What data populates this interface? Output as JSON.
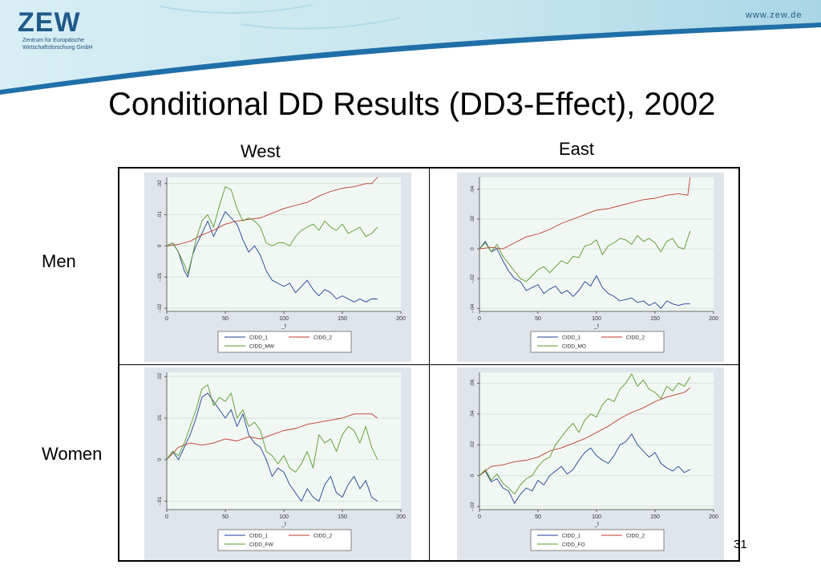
{
  "header": {
    "logo_text": "ZEW",
    "logo_sub_1": "Zentrum für Europäische",
    "logo_sub_2": "Wirtschaftsforschung GmbH",
    "website": "www.zew.de",
    "colors": {
      "banner": "#cfe8f0",
      "banner_dark": "#1f6fa8",
      "logo": "#1f5a8a"
    }
  },
  "slide": {
    "title": "Conditional DD Results (DD3-Effect), 2002",
    "col_labels": [
      "West",
      "East"
    ],
    "row_labels": [
      "Men",
      "Women"
    ],
    "page_number": "31"
  },
  "chart_data": [
    {
      "type": "line",
      "panel": "West - Men",
      "xlabel": "_t",
      "xlim": [
        0,
        200
      ],
      "xticks": [
        0,
        50,
        100,
        150,
        200
      ],
      "ylim": [
        -0.021,
        0.022
      ],
      "yticks": [
        -0.02,
        -0.01,
        0,
        0.01,
        0.02
      ],
      "ytick_labels": [
        "-.02",
        "-.01",
        "0",
        ".01",
        ".02"
      ],
      "legend": [
        "CIDD_1",
        "CIDD_2",
        "CIDD_MW"
      ],
      "legend_position": "bottom",
      "grid": true,
      "series": [
        {
          "name": "CIDD_1",
          "color": "#1f3f99",
          "x": [
            0,
            5,
            10,
            15,
            18,
            22,
            25,
            30,
            35,
            40,
            45,
            50,
            55,
            60,
            65,
            70,
            75,
            80,
            85,
            90,
            95,
            100,
            105,
            110,
            115,
            120,
            125,
            130,
            135,
            140,
            145,
            150,
            155,
            160,
            165,
            170,
            175,
            180
          ],
          "y": [
            0,
            0.001,
            -0.002,
            -0.008,
            -0.01,
            -0.003,
            0.0,
            0.004,
            0.008,
            0.003,
            0.007,
            0.011,
            0.009,
            0.007,
            0.002,
            -0.002,
            0.0,
            -0.003,
            -0.008,
            -0.011,
            -0.012,
            -0.013,
            -0.012,
            -0.015,
            -0.013,
            -0.011,
            -0.014,
            -0.016,
            -0.014,
            -0.015,
            -0.017,
            -0.016,
            -0.017,
            -0.018,
            -0.017,
            -0.018,
            -0.017,
            -0.017
          ]
        },
        {
          "name": "CIDD_2",
          "color": "#c0392b",
          "x": [
            0,
            10,
            20,
            30,
            40,
            50,
            60,
            70,
            80,
            90,
            100,
            110,
            120,
            130,
            140,
            150,
            160,
            170,
            175,
            180
          ],
          "y": [
            0,
            0.0005,
            0.0015,
            0.0035,
            0.005,
            0.007,
            0.008,
            0.0085,
            0.009,
            0.0105,
            0.012,
            0.013,
            0.014,
            0.016,
            0.0175,
            0.0185,
            0.019,
            0.02,
            0.02,
            0.022
          ]
        },
        {
          "name": "CIDD_MW",
          "color": "#5a9a2a",
          "x": [
            0,
            5,
            10,
            15,
            18,
            22,
            25,
            30,
            35,
            40,
            45,
            50,
            55,
            60,
            65,
            70,
            75,
            80,
            85,
            90,
            95,
            100,
            105,
            110,
            115,
            120,
            125,
            130,
            135,
            140,
            145,
            150,
            155,
            160,
            165,
            170,
            175,
            180
          ],
          "y": [
            0,
            0.001,
            -0.002,
            -0.006,
            -0.009,
            -0.003,
            0.002,
            0.008,
            0.01,
            0.006,
            0.013,
            0.019,
            0.018,
            0.012,
            0.008,
            0.009,
            0.008,
            0.006,
            0.001,
            0.0,
            0.001,
            0.001,
            0.0,
            0.003,
            0.005,
            0.006,
            0.007,
            0.005,
            0.008,
            0.006,
            0.005,
            0.007,
            0.004,
            0.005,
            0.006,
            0.003,
            0.004,
            0.006
          ]
        }
      ]
    },
    {
      "type": "line",
      "panel": "East - Men",
      "xlabel": "_t",
      "xlim": [
        0,
        200
      ],
      "xticks": [
        0,
        50,
        100,
        150,
        200
      ],
      "ylim": [
        -0.042,
        0.048
      ],
      "yticks": [
        -0.04,
        -0.02,
        0,
        0.02,
        0.04
      ],
      "ytick_labels": [
        "-.04",
        "-.02",
        "0",
        ".02",
        ".04"
      ],
      "legend": [
        "CIDD_1",
        "CIDD_2",
        "CIDD_MO"
      ],
      "legend_position": "bottom",
      "grid": true,
      "series": [
        {
          "name": "CIDD_1",
          "color": "#1f3f99",
          "x": [
            0,
            5,
            10,
            15,
            20,
            25,
            30,
            35,
            40,
            45,
            50,
            55,
            60,
            65,
            70,
            75,
            80,
            85,
            90,
            95,
            100,
            105,
            110,
            115,
            120,
            125,
            130,
            135,
            140,
            145,
            150,
            155,
            160,
            165,
            170,
            175,
            180
          ],
          "y": [
            0,
            0.005,
            -0.002,
            0.0,
            -0.008,
            -0.015,
            -0.02,
            -0.022,
            -0.028,
            -0.026,
            -0.024,
            -0.03,
            -0.027,
            -0.025,
            -0.03,
            -0.028,
            -0.032,
            -0.028,
            -0.022,
            -0.025,
            -0.018,
            -0.026,
            -0.03,
            -0.032,
            -0.035,
            -0.034,
            -0.033,
            -0.036,
            -0.035,
            -0.038,
            -0.036,
            -0.04,
            -0.035,
            -0.037,
            -0.038,
            -0.037,
            -0.037
          ]
        },
        {
          "name": "CIDD_2",
          "color": "#c0392b",
          "x": [
            0,
            10,
            20,
            30,
            40,
            50,
            60,
            70,
            80,
            90,
            100,
            110,
            120,
            130,
            140,
            150,
            160,
            170,
            178,
            180
          ],
          "y": [
            0,
            0.001,
            0.0,
            0.004,
            0.008,
            0.01,
            0.013,
            0.017,
            0.02,
            0.023,
            0.026,
            0.027,
            0.029,
            0.031,
            0.033,
            0.034,
            0.036,
            0.037,
            0.036,
            0.048
          ]
        },
        {
          "name": "CIDD_MO",
          "color": "#5a9a2a",
          "x": [
            0,
            5,
            10,
            15,
            20,
            25,
            30,
            35,
            40,
            45,
            50,
            55,
            60,
            65,
            70,
            75,
            80,
            85,
            90,
            95,
            100,
            105,
            110,
            115,
            120,
            125,
            130,
            135,
            140,
            145,
            150,
            155,
            160,
            165,
            170,
            175,
            180
          ],
          "y": [
            0,
            0.004,
            -0.002,
            0.003,
            -0.005,
            -0.01,
            -0.015,
            -0.02,
            -0.022,
            -0.018,
            -0.014,
            -0.012,
            -0.016,
            -0.012,
            -0.008,
            -0.01,
            -0.005,
            -0.006,
            0.002,
            0.003,
            0.006,
            -0.004,
            0.002,
            0.004,
            0.007,
            0.006,
            0.003,
            0.009,
            0.005,
            0.007,
            0.004,
            -0.002,
            0.005,
            0.007,
            0.001,
            0.0,
            0.012
          ]
        }
      ]
    },
    {
      "type": "line",
      "panel": "West - Women",
      "xlabel": "_t",
      "xlim": [
        0,
        200
      ],
      "xticks": [
        0,
        50,
        100,
        150,
        200
      ],
      "ylim": [
        -0.012,
        0.021
      ],
      "yticks": [
        -0.01,
        0,
        0.01,
        0.02
      ],
      "ytick_labels": [
        "-.01",
        "0",
        ".01",
        ".02"
      ],
      "legend": [
        "CIDD_1",
        "CIDD_2",
        "CIDD_FW"
      ],
      "legend_position": "bottom",
      "grid": true,
      "series": [
        {
          "name": "CIDD_1",
          "color": "#1f3f99",
          "x": [
            0,
            5,
            10,
            15,
            20,
            25,
            30,
            35,
            40,
            45,
            50,
            55,
            60,
            65,
            70,
            75,
            80,
            85,
            90,
            95,
            100,
            105,
            110,
            115,
            120,
            125,
            130,
            135,
            140,
            145,
            150,
            155,
            160,
            165,
            170,
            175,
            180
          ],
          "y": [
            0,
            0.002,
            0.0,
            0.003,
            0.006,
            0.01,
            0.015,
            0.016,
            0.014,
            0.012,
            0.01,
            0.012,
            0.008,
            0.011,
            0.006,
            0.004,
            0.003,
            0.0,
            -0.004,
            -0.002,
            -0.003,
            -0.006,
            -0.008,
            -0.01,
            -0.007,
            -0.009,
            -0.01,
            -0.006,
            -0.004,
            -0.008,
            -0.009,
            -0.006,
            -0.004,
            -0.007,
            -0.005,
            -0.009,
            -0.01
          ]
        },
        {
          "name": "CIDD_2",
          "color": "#c0392b",
          "x": [
            0,
            10,
            20,
            30,
            40,
            50,
            60,
            70,
            80,
            90,
            100,
            110,
            120,
            130,
            140,
            150,
            160,
            170,
            175,
            180
          ],
          "y": [
            0,
            0.003,
            0.004,
            0.0035,
            0.004,
            0.005,
            0.0045,
            0.0055,
            0.005,
            0.006,
            0.007,
            0.0075,
            0.0085,
            0.009,
            0.0095,
            0.01,
            0.011,
            0.011,
            0.011,
            0.01
          ]
        },
        {
          "name": "CIDD_FW",
          "color": "#5a9a2a",
          "x": [
            0,
            5,
            10,
            15,
            20,
            25,
            30,
            35,
            40,
            45,
            50,
            55,
            60,
            65,
            70,
            75,
            80,
            85,
            90,
            95,
            100,
            105,
            110,
            115,
            120,
            125,
            130,
            135,
            140,
            145,
            150,
            155,
            160,
            165,
            170,
            175,
            180
          ],
          "y": [
            0,
            0.002,
            0.001,
            0.004,
            0.008,
            0.012,
            0.017,
            0.018,
            0.013,
            0.015,
            0.014,
            0.016,
            0.01,
            0.012,
            0.008,
            0.009,
            0.007,
            0.002,
            0.001,
            -0.001,
            0.001,
            -0.002,
            -0.003,
            -0.001,
            0.002,
            -0.002,
            0.006,
            0.004,
            0.005,
            0.002,
            0.006,
            0.008,
            0.007,
            0.004,
            0.008,
            0.003,
            0.0
          ]
        }
      ]
    },
    {
      "type": "line",
      "panel": "East - Women",
      "xlabel": "_t",
      "xlim": [
        0,
        200
      ],
      "xticks": [
        0,
        50,
        100,
        150,
        200
      ],
      "ylim": [
        -0.022,
        0.067
      ],
      "yticks": [
        -0.02,
        0,
        0.02,
        0.04,
        0.06
      ],
      "ytick_labels": [
        "-.02",
        "0",
        ".02",
        ".04",
        ".06"
      ],
      "legend": [
        "CIDD_1",
        "CIDD_2",
        "CIDD_FO"
      ],
      "legend_position": "bottom",
      "grid": true,
      "series": [
        {
          "name": "CIDD_1",
          "color": "#1f3f99",
          "x": [
            0,
            5,
            10,
            15,
            20,
            25,
            30,
            35,
            40,
            45,
            50,
            55,
            60,
            65,
            70,
            75,
            80,
            85,
            90,
            95,
            100,
            105,
            110,
            115,
            120,
            125,
            130,
            135,
            140,
            145,
            150,
            155,
            160,
            165,
            170,
            175,
            180
          ],
          "y": [
            0,
            0.003,
            -0.004,
            -0.002,
            -0.008,
            -0.01,
            -0.018,
            -0.012,
            -0.008,
            -0.01,
            -0.003,
            -0.006,
            0.0,
            0.003,
            0.006,
            0.001,
            0.004,
            0.01,
            0.015,
            0.018,
            0.013,
            0.01,
            0.008,
            0.013,
            0.02,
            0.022,
            0.027,
            0.02,
            0.016,
            0.012,
            0.015,
            0.008,
            0.005,
            0.003,
            0.006,
            0.002,
            0.004
          ]
        },
        {
          "name": "CIDD_2",
          "color": "#c0392b",
          "x": [
            0,
            10,
            20,
            30,
            40,
            50,
            60,
            70,
            80,
            90,
            100,
            110,
            120,
            130,
            140,
            150,
            160,
            170,
            175,
            180
          ],
          "y": [
            0,
            0.006,
            0.007,
            0.009,
            0.01,
            0.012,
            0.016,
            0.018,
            0.021,
            0.024,
            0.028,
            0.032,
            0.037,
            0.041,
            0.044,
            0.048,
            0.051,
            0.053,
            0.054,
            0.057
          ]
        },
        {
          "name": "CIDD_FO",
          "color": "#5a9a2a",
          "x": [
            0,
            5,
            10,
            15,
            20,
            25,
            30,
            35,
            40,
            45,
            50,
            55,
            60,
            65,
            70,
            75,
            80,
            85,
            90,
            95,
            100,
            105,
            110,
            115,
            120,
            125,
            130,
            135,
            140,
            145,
            150,
            155,
            160,
            165,
            170,
            175,
            180
          ],
          "y": [
            0,
            0.004,
            -0.003,
            0.001,
            -0.005,
            -0.008,
            -0.012,
            -0.006,
            -0.002,
            0.0,
            0.006,
            0.01,
            0.012,
            0.02,
            0.025,
            0.03,
            0.034,
            0.028,
            0.036,
            0.04,
            0.038,
            0.046,
            0.05,
            0.048,
            0.056,
            0.06,
            0.066,
            0.058,
            0.062,
            0.056,
            0.054,
            0.05,
            0.058,
            0.055,
            0.06,
            0.058,
            0.064
          ]
        }
      ]
    }
  ]
}
